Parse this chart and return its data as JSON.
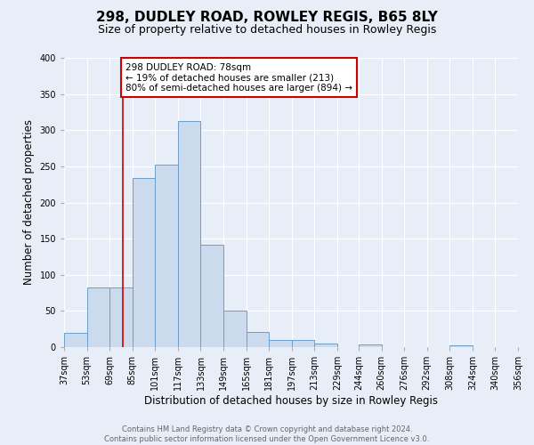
{
  "title": "298, DUDLEY ROAD, ROWLEY REGIS, B65 8LY",
  "subtitle": "Size of property relative to detached houses in Rowley Regis",
  "xlabel": "Distribution of detached houses by size in Rowley Regis",
  "ylabel": "Number of detached properties",
  "bar_color": "#ccdaee",
  "bar_edge_color": "#6a9eca",
  "background_color": "#e8eef8",
  "vline_x": 78,
  "vline_color": "#cc0000",
  "annotation_title": "298 DUDLEY ROAD: 78sqm",
  "annotation_line2": "← 19% of detached houses are smaller (213)",
  "annotation_line3": "80% of semi-detached houses are larger (894) →",
  "annotation_box_color": "#cc0000",
  "bin_edges": [
    37,
    53,
    69,
    85,
    101,
    117,
    133,
    149,
    165,
    181,
    197,
    213,
    229,
    244,
    260,
    276,
    292,
    308,
    324,
    340,
    356
  ],
  "bin_counts": [
    20,
    83,
    83,
    234,
    252,
    313,
    141,
    50,
    21,
    10,
    10,
    5,
    0,
    4,
    0,
    0,
    0,
    2,
    0,
    0
  ],
  "ylim": [
    0,
    400
  ],
  "yticks": [
    0,
    50,
    100,
    150,
    200,
    250,
    300,
    350,
    400
  ],
  "footer_line1": "Contains HM Land Registry data © Crown copyright and database right 2024.",
  "footer_line2": "Contains public sector information licensed under the Open Government Licence v3.0.",
  "grid_color": "#ffffff",
  "title_fontsize": 11,
  "subtitle_fontsize": 9,
  "tick_label_fontsize": 7,
  "axis_label_fontsize": 8.5,
  "footer_fontsize": 6
}
